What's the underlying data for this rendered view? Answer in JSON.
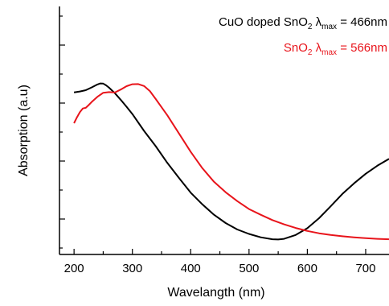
{
  "chart_data": {
    "type": "line",
    "xlabel": "Wavelangth (nm)",
    "ylabel": "Absorption (a.u)",
    "xlim": [
      175,
      740
    ],
    "ylim": [
      0,
      1
    ],
    "x_ticks": [
      200,
      300,
      400,
      500,
      600,
      700
    ],
    "x_tick_labels": [
      "200",
      "300",
      "400",
      "500",
      "600",
      "700"
    ],
    "y_tick_labels_shown": false,
    "grid": false,
    "legend_placement": "top-right",
    "series": [
      {
        "key": "cuo_sno2",
        "name": "CuO doped SnO2 λmax = 466nm",
        "legend_main": "CuO doped SnO",
        "legend_sub": "2",
        "legend_lambda": " λ",
        "legend_lambda_sub": "max",
        "legend_value": " = 466nm",
        "color": "#000000",
        "x": [
          200,
          210,
          220,
          230,
          240,
          245,
          250,
          255,
          260,
          270,
          280,
          290,
          300,
          320,
          340,
          360,
          380,
          400,
          420,
          440,
          460,
          480,
          500,
          520,
          540,
          550,
          560,
          580,
          600,
          620,
          640,
          660,
          680,
          700,
          720,
          740
        ],
        "y": [
          0.702,
          0.706,
          0.712,
          0.725,
          0.739,
          0.744,
          0.743,
          0.735,
          0.724,
          0.698,
          0.667,
          0.634,
          0.6,
          0.521,
          0.449,
          0.37,
          0.299,
          0.23,
          0.175,
          0.126,
          0.087,
          0.057,
          0.036,
          0.02,
          0.011,
          0.01,
          0.013,
          0.031,
          0.063,
          0.11,
          0.166,
          0.224,
          0.274,
          0.319,
          0.357,
          0.389
        ]
      },
      {
        "key": "sno2",
        "name": "SnO2 λmax = 566nm",
        "legend_main": "SnO",
        "legend_sub": "2",
        "legend_lambda": " λ",
        "legend_lambda_sub": "max",
        "legend_value": " = 566nm",
        "color": "#e8141b",
        "x": [
          200,
          205,
          210,
          215,
          220,
          225,
          230,
          240,
          250,
          260,
          270,
          280,
          290,
          300,
          310,
          320,
          330,
          340,
          360,
          380,
          400,
          420,
          440,
          460,
          480,
          500,
          520,
          540,
          560,
          580,
          600,
          620,
          640,
          660,
          680,
          700,
          720,
          740
        ],
        "y": [
          0.557,
          0.585,
          0.609,
          0.626,
          0.629,
          0.642,
          0.656,
          0.681,
          0.7,
          0.703,
          0.701,
          0.715,
          0.731,
          0.74,
          0.741,
          0.732,
          0.708,
          0.671,
          0.594,
          0.508,
          0.422,
          0.345,
          0.281,
          0.232,
          0.19,
          0.153,
          0.126,
          0.101,
          0.081,
          0.064,
          0.05,
          0.039,
          0.031,
          0.025,
          0.02,
          0.016,
          0.013,
          0.011
        ]
      }
    ]
  }
}
